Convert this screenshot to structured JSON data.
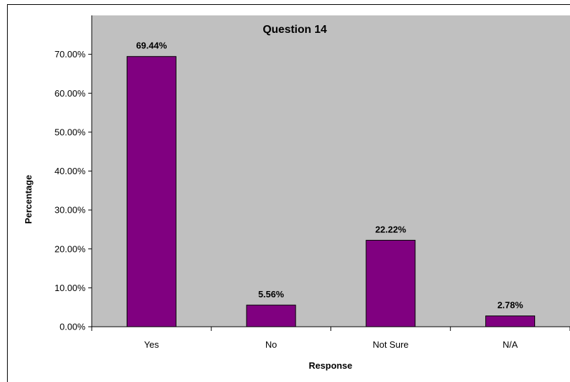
{
  "chart_data": {
    "type": "bar",
    "title": "Question 14",
    "xlabel": "Response",
    "ylabel": "Percentage",
    "categories": [
      "Yes",
      "No",
      "Not Sure",
      "N/A"
    ],
    "values": [
      69.44,
      5.56,
      22.22,
      2.78
    ],
    "data_labels": [
      "69.44%",
      "5.56%",
      "22.22%",
      "2.78%"
    ],
    "yticks": [
      0,
      10,
      20,
      30,
      40,
      50,
      60,
      70
    ],
    "ytick_labels": [
      "0.00%",
      "10.00%",
      "20.00%",
      "30.00%",
      "40.00%",
      "50.00%",
      "60.00%",
      "70.00%"
    ],
    "ylim": [
      0,
      80
    ],
    "grid": false,
    "legend": "none",
    "colors": {
      "bar": "#800080",
      "plot_background": "#c0c0c0",
      "axis": "#000000"
    }
  }
}
